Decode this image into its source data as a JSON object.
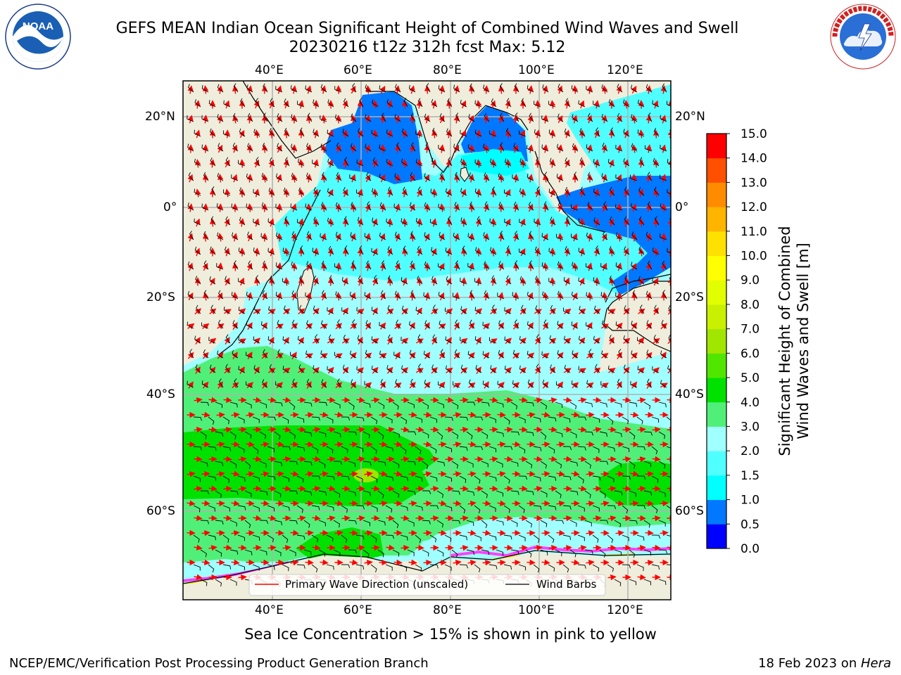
{
  "header": {
    "title_line1": "GEFS MEAN Indian Ocean Significant Height of Combined Wind Waves and Swell",
    "title_line2": "20230216 t12z 312h fcst   Max: 5.12"
  },
  "logos": {
    "noaa_text": "NOAA",
    "noaa_ring_text": "NATIONAL OCEANIC AND ATMOSPHERIC ADMINISTRATION · U.S. DEPARTMENT OF COMMERCE",
    "nws_ring_text": "NATIONAL WEATHER SERVICE"
  },
  "map": {
    "lon_labels_top": [
      "40°E",
      "60°E",
      "80°E",
      "100°E",
      "120°E"
    ],
    "lon_labels_bottom": [
      "40°E",
      "60°E",
      "80°E",
      "100°E",
      "120°E"
    ],
    "lat_labels_left": [
      "20°N",
      "0°",
      "20°S",
      "40°S",
      "60°S"
    ],
    "lat_labels_right": [
      "20°N",
      "0°",
      "20°S",
      "40°S",
      "60°S"
    ],
    "legend": {
      "wave_direction": "Primary Wave Direction (unscaled)",
      "wind_barbs": "Wind Barbs"
    },
    "colors": {
      "land": "#efeedc",
      "grid": "#b0b0b0",
      "wave_arrow": "#ff0000",
      "wind_barb": "#000000",
      "sea_ice": "#ff40ff"
    }
  },
  "colorbar": {
    "label_line1": "Significant Height of Combined",
    "label_line2": "Wind Waves and Swell [m]",
    "ticks": [
      "0.0",
      "0.5",
      "1.0",
      "1.5",
      "2.0",
      "3.0",
      "4.0",
      "5.0",
      "6.0",
      "7.0",
      "8.0",
      "9.0",
      "10.0",
      "11.0",
      "12.0",
      "13.0",
      "14.0",
      "15.0"
    ],
    "colors": [
      "#0000ff",
      "#0078ff",
      "#00ffff",
      "#50ffff",
      "#a0ffff",
      "#50f078",
      "#00e100",
      "#50e600",
      "#a0e600",
      "#c8f000",
      "#e1ff00",
      "#ffff00",
      "#ffe100",
      "#ffb400",
      "#ff8c00",
      "#ff5000",
      "#ff0000"
    ]
  },
  "footer": {
    "sea_ice_note": "Sea Ice Concentration > 15% is shown in pink to yellow",
    "credit": "NCEP/EMC/Verification Post Processing Product Generation Branch",
    "date": "18 Feb 2023 on ",
    "host": "Hera"
  }
}
